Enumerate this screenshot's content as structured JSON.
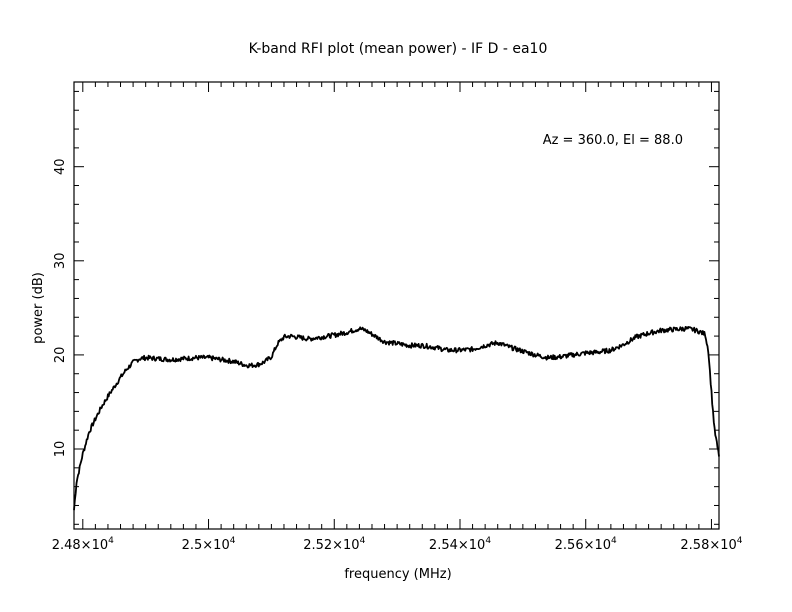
{
  "chart_data": {
    "type": "line",
    "title": "K-band RFI plot (mean power) - IF D - ea10",
    "xlabel": "frequency (MHz)",
    "ylabel": "power (dB)",
    "annotation": "Az = 360.0, El = 88.0",
    "xlim": [
      24786,
      25812
    ],
    "ylim": [
      1.5,
      49
    ],
    "grid": false,
    "x_ticks": [
      {
        "value": 24800,
        "mantissa": "2.48",
        "exp": "4"
      },
      {
        "value": 25000,
        "mantissa": "2.5",
        "exp": "4"
      },
      {
        "value": 25200,
        "mantissa": "2.52",
        "exp": "4"
      },
      {
        "value": 25400,
        "mantissa": "2.54",
        "exp": "4"
      },
      {
        "value": 25600,
        "mantissa": "2.56",
        "exp": "4"
      },
      {
        "value": 25800,
        "mantissa": "2.58",
        "exp": "4"
      }
    ],
    "y_ticks": [
      {
        "value": 10,
        "label": "10"
      },
      {
        "value": 20,
        "label": "20"
      },
      {
        "value": 30,
        "label": "30"
      },
      {
        "value": 40,
        "label": "40"
      }
    ],
    "series": [
      {
        "color": "#000000",
        "x": [
          24786,
          24790,
          24800,
          24810,
          24820,
          24830,
          24840,
          24850,
          24860,
          24870,
          24880,
          24890,
          24900,
          24920,
          24940,
          24960,
          24980,
          25000,
          25020,
          25040,
          25060,
          25070,
          25080,
          25090,
          25100,
          25110,
          25120,
          25130,
          25140,
          25160,
          25180,
          25200,
          25220,
          25240,
          25250,
          25260,
          25270,
          25280,
          25300,
          25320,
          25340,
          25360,
          25380,
          25400,
          25420,
          25440,
          25460,
          25480,
          25500,
          25520,
          25540,
          25560,
          25580,
          25600,
          25620,
          25640,
          25660,
          25680,
          25700,
          25720,
          25740,
          25760,
          25770,
          25780,
          25790,
          25795,
          25800,
          25805,
          25812
        ],
        "y": [
          3.5,
          6.5,
          9.5,
          11.8,
          13.2,
          14.5,
          15.6,
          16.6,
          17.6,
          18.5,
          19.2,
          19.6,
          19.7,
          19.6,
          19.5,
          19.6,
          19.7,
          19.7,
          19.5,
          19.3,
          18.9,
          18.9,
          19.0,
          19.3,
          19.8,
          21.2,
          21.9,
          22.0,
          21.9,
          21.7,
          21.9,
          22.1,
          22.4,
          22.8,
          22.6,
          22.2,
          21.8,
          21.4,
          21.2,
          21.0,
          21.0,
          20.8,
          20.5,
          20.5,
          20.6,
          21.0,
          21.3,
          20.8,
          20.4,
          20.0,
          19.7,
          19.8,
          20.0,
          20.2,
          20.3,
          20.5,
          21.1,
          21.9,
          22.3,
          22.6,
          22.7,
          22.8,
          22.7,
          22.5,
          22.2,
          20.5,
          16.0,
          12.0,
          9.2
        ]
      }
    ]
  }
}
